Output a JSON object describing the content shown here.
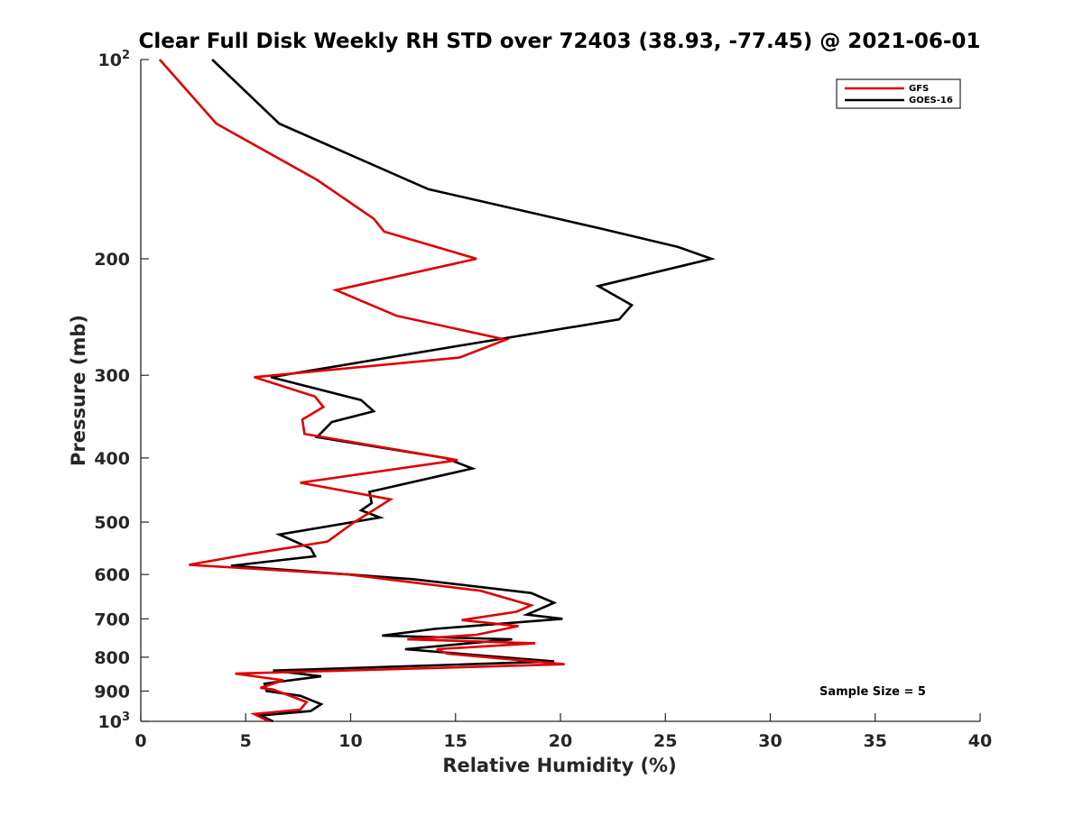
{
  "chart_data": {
    "type": "line",
    "title": "Clear Full Disk Weekly RH STD over 72403 (38.93, -77.45) @ 2021-06-01",
    "xlabel": "Relative Humidity (%)",
    "ylabel": "Pressure (mb)",
    "xlim": [
      0,
      40
    ],
    "ylim": [
      100,
      1000
    ],
    "yscale": "log",
    "y_reversed": true,
    "grid": false,
    "legend_position": "top-right",
    "x_ticks": [
      0,
      5,
      10,
      15,
      20,
      25,
      30,
      35,
      40
    ],
    "y_ticks": [
      {
        "value": 100,
        "base": "10",
        "exp": "2"
      },
      {
        "value": 200,
        "label": "200"
      },
      {
        "value": 300,
        "label": "300"
      },
      {
        "value": 400,
        "label": "400"
      },
      {
        "value": 500,
        "label": "500"
      },
      {
        "value": 600,
        "label": "600"
      },
      {
        "value": 700,
        "label": "700"
      },
      {
        "value": 800,
        "label": "800"
      },
      {
        "value": 900,
        "label": "900"
      },
      {
        "value": 1000,
        "base": "10",
        "exp": "3"
      }
    ],
    "annotation": "Sample Size = 5",
    "series": [
      {
        "name": "GFS",
        "color": "#e00000",
        "points": [
          [
            0.9,
            100
          ],
          [
            3.6,
            125
          ],
          [
            8.4,
            152
          ],
          [
            11.1,
            174
          ],
          [
            11.6,
            182
          ],
          [
            16.0,
            200
          ],
          [
            9.3,
            223
          ],
          [
            12.2,
            244
          ],
          [
            17.4,
            265
          ],
          [
            15.2,
            282
          ],
          [
            5.4,
            302
          ],
          [
            8.3,
            323
          ],
          [
            8.7,
            335
          ],
          [
            7.7,
            350
          ],
          [
            7.8,
            368
          ],
          [
            15.1,
            403
          ],
          [
            7.6,
            436
          ],
          [
            11.9,
            462
          ],
          [
            10.1,
            502
          ],
          [
            8.9,
            535
          ],
          [
            5.0,
            560
          ],
          [
            2.3,
            580
          ],
          [
            9.9,
            600
          ],
          [
            16.2,
            635
          ],
          [
            18.6,
            668
          ],
          [
            17.9,
            683
          ],
          [
            15.3,
            703
          ],
          [
            18.0,
            718
          ],
          [
            16.0,
            740
          ],
          [
            12.7,
            752
          ],
          [
            18.8,
            762
          ],
          [
            14.1,
            778
          ],
          [
            14.6,
            790
          ],
          [
            20.2,
            820
          ],
          [
            4.5,
            847
          ],
          [
            6.8,
            867
          ],
          [
            5.7,
            890
          ],
          [
            6.3,
            895
          ],
          [
            7.9,
            935
          ],
          [
            7.6,
            960
          ],
          [
            5.4,
            975
          ],
          [
            6.1,
            1000
          ]
        ]
      },
      {
        "name": "GOES-16",
        "color": "#000000",
        "points": [
          [
            3.4,
            100
          ],
          [
            6.6,
            125
          ],
          [
            13.7,
            157
          ],
          [
            21.9,
            180
          ],
          [
            25.6,
            192
          ],
          [
            27.2,
            200
          ],
          [
            21.8,
            220
          ],
          [
            23.4,
            235
          ],
          [
            22.8,
            247
          ],
          [
            15.4,
            270
          ],
          [
            6.2,
            302
          ],
          [
            10.5,
            327
          ],
          [
            11.1,
            340
          ],
          [
            9.1,
            353
          ],
          [
            8.4,
            372
          ],
          [
            14.5,
            400
          ],
          [
            15.8,
            415
          ],
          [
            10.9,
            450
          ],
          [
            11.0,
            468
          ],
          [
            10.5,
            480
          ],
          [
            11.4,
            492
          ],
          [
            6.6,
            522
          ],
          [
            8.1,
            548
          ],
          [
            8.3,
            563
          ],
          [
            4.3,
            582
          ],
          [
            13.0,
            610
          ],
          [
            18.6,
            640
          ],
          [
            19.7,
            662
          ],
          [
            18.4,
            690
          ],
          [
            20.1,
            700
          ],
          [
            14.0,
            725
          ],
          [
            11.5,
            742
          ],
          [
            17.7,
            752
          ],
          [
            12.6,
            778
          ],
          [
            19.7,
            812
          ],
          [
            6.3,
            838
          ],
          [
            8.6,
            855
          ],
          [
            5.9,
            877
          ],
          [
            6.0,
            900
          ],
          [
            7.6,
            915
          ],
          [
            8.6,
            942
          ],
          [
            8.1,
            965
          ],
          [
            5.7,
            980
          ],
          [
            6.3,
            1000
          ]
        ]
      }
    ]
  }
}
